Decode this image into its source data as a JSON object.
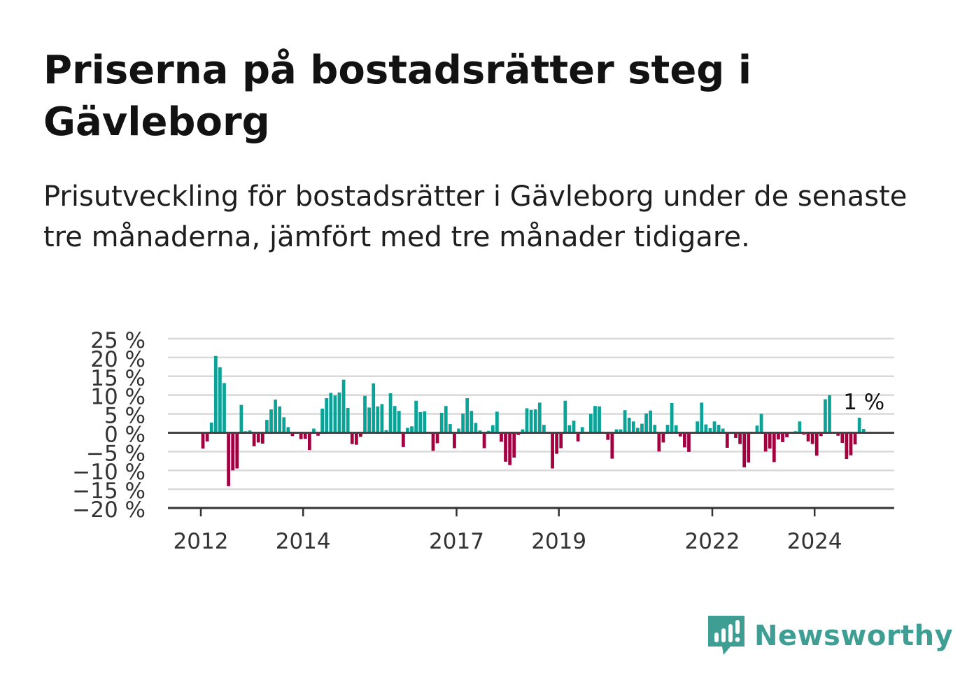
{
  "title": "Priserna på bostadsrätter steg i Gävleborg",
  "subtitle": "Prisutveckling för bostadsrätter i Gävleborg under de senaste tre månaderna, jämfört med tre månader tidigare.",
  "brand": {
    "name": "Newsworthy",
    "color": "#3f9e93"
  },
  "colors": {
    "positive": "#0aa398",
    "negative": "#a3003f",
    "grid": "#d9d9d9",
    "axis": "#333333"
  },
  "chart_data": {
    "type": "bar",
    "x_start": "2012-01",
    "x_end": "2024-12",
    "ylim": [
      -20,
      25
    ],
    "yticks": [
      25,
      20,
      15,
      10,
      5,
      0,
      -5,
      -10,
      -15,
      -20
    ],
    "ytick_labels": [
      "25 %",
      "20 %",
      "15 %",
      "10 %",
      "5 %",
      "0 %",
      "−5 %",
      "−10 %",
      "−15 %",
      "−20 %"
    ],
    "xticks": [
      {
        "year": 2012,
        "label": "2012"
      },
      {
        "year": 2014,
        "label": "2014"
      },
      {
        "year": 2017,
        "label": "2017"
      },
      {
        "year": 2019,
        "label": "2019"
      },
      {
        "year": 2022,
        "label": "2022"
      },
      {
        "year": 2024,
        "label": "2024"
      }
    ],
    "grid": true,
    "last_value_label": "1 %",
    "values": [
      -4.2,
      -2.3,
      2.7,
      20.4,
      17.4,
      13.2,
      -14.2,
      -10.0,
      -9.5,
      7.4,
      0.4,
      0.6,
      -3.6,
      -2.6,
      -2.9,
      3.4,
      6.2,
      8.8,
      7.0,
      4.1,
      1.5,
      -0.9,
      0.2,
      -1.7,
      -1.6,
      -4.6,
      1.1,
      -0.8,
      6.4,
      9.2,
      10.6,
      9.9,
      10.7,
      14.1,
      6.6,
      -3.0,
      -3.2,
      -1.1,
      9.8,
      6.7,
      13.1,
      7.0,
      7.6,
      0.7,
      10.5,
      7.1,
      5.8,
      -3.8,
      1.3,
      1.7,
      8.5,
      5.5,
      5.7,
      0.2,
      -4.8,
      -2.8,
      5.3,
      7.1,
      2.3,
      -4.1,
      1.1,
      5.1,
      9.2,
      5.8,
      2.6,
      0.6,
      -4.1,
      0.5,
      2.0,
      5.6,
      -2.4,
      -7.7,
      -8.6,
      -6.6,
      -0.6,
      0.9,
      6.5,
      6.1,
      6.2,
      8.0,
      2.1,
      0.1,
      -9.5,
      -5.6,
      -4.1,
      8.5,
      2.0,
      3.2,
      -2.3,
      1.5,
      0.2,
      5.0,
      7.1,
      7.0,
      0.2,
      -1.9,
      -6.9,
      0.9,
      0.9,
      6.0,
      4.0,
      3.0,
      1.3,
      2.4,
      5.1,
      5.9,
      2.1,
      -5.0,
      -2.6,
      2.1,
      7.9,
      2.0,
      -1.0,
      -3.9,
      -5.1,
      0.2,
      3.0,
      8.0,
      2.2,
      1.2,
      3.0,
      2.1,
      1.1,
      -4.0,
      -0.2,
      -1.4,
      -3.0,
      -9.2,
      -7.9,
      -0.3,
      1.9,
      5.0,
      -5.0,
      -4.2,
      -7.8,
      -1.8,
      -2.5,
      -1.2,
      0.1,
      0.4,
      3.0,
      -0.5,
      -2.3,
      -3.0,
      -6.1,
      -0.9,
      8.9,
      10.0,
      0.2,
      -0.8,
      -2.7,
      -7.0,
      -6.0,
      -3.1,
      4.0,
      1.0
    ]
  }
}
